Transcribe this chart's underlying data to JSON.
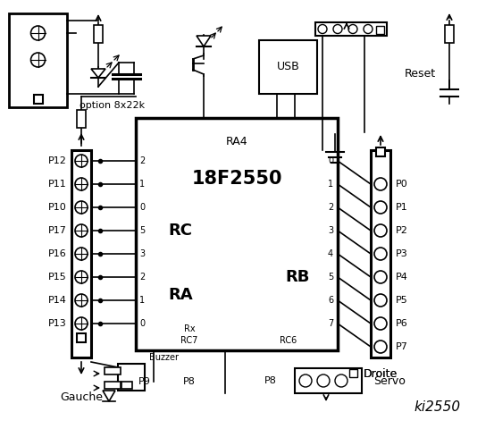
{
  "bg_color": "#ffffff",
  "title": "ki2550",
  "chip_label": "18F2550",
  "chip_sublabel": "RA4",
  "rc_label": "RC",
  "ra_label": "RA",
  "rb_label": "RB",
  "rc_pins": [
    "2",
    "1",
    "0",
    "5",
    "3",
    "2",
    "1",
    "0"
  ],
  "rb_pins": [
    "0",
    "1",
    "2",
    "3",
    "4",
    "5",
    "6",
    "7"
  ],
  "left_labels": [
    "P12",
    "P11",
    "P10",
    "P17",
    "P16",
    "P15",
    "P14",
    "P13"
  ],
  "right_labels": [
    "P0",
    "P1",
    "P2",
    "P3",
    "P4",
    "P5",
    "P6",
    "P7"
  ],
  "option_text": "option 8x22k",
  "rx_text": "Rx",
  "rc7_text": "RC7",
  "rc6_text": "RC6",
  "usb_text": "USB",
  "reset_text": "Reset",
  "gauche_text": "Gauche",
  "droite_text": "Droite",
  "buzzer_text": "Buzzer",
  "p9_text": "P9",
  "p8_text": "P8",
  "servo_text": "Servo",
  "ki_text": "ki2550"
}
